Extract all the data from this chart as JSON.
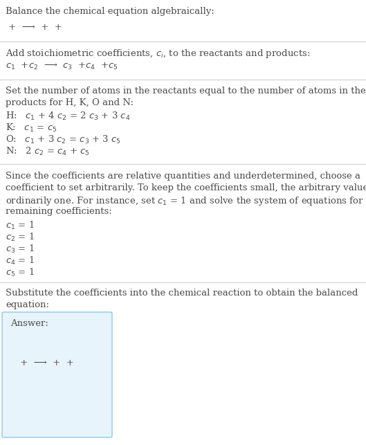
{
  "bg_color": "#ffffff",
  "text_color": "#4a4a4a",
  "line_color": "#cccccc",
  "title": "Balance the chemical equation algebraically:",
  "eq1": " +  ⟶  +  + ",
  "s2_intro": "Add stoichiometric coefficients, $c_i$, to the reactants and products:",
  "eq2_parts": [
    "$c_1$  +$c_2$",
    "  ⟶  $c_3$  +$c_4$  +$c_5$"
  ],
  "s3_line1": "Set the number of atoms in the reactants equal to the number of atoms in the",
  "s3_line2": "products for H, K, O and N:",
  "atom_H": "H:   $c_1$ + 4 $c_2$ = 2 $c_3$ + 3 $c_4$",
  "atom_K": "K:   $c_1$ = $c_5$",
  "atom_O": "O:   $c_1$ + 3 $c_2$ = $c_3$ + 3 $c_5$",
  "atom_N": "N:   2 $c_2$ = $c_4$ + $c_5$",
  "s4_line1": "Since the coefficients are relative quantities and underdetermined, choose a",
  "s4_line2": "coefficient to set arbitrarily. To keep the coefficients small, the arbitrary value is",
  "s4_line3": "ordinarily one. For instance, set $c_1$ = 1 and solve the system of equations for the",
  "s4_line4": "remaining coefficients:",
  "c1": "$c_1$ = 1",
  "c2": "$c_2$ = 1",
  "c3": "$c_3$ = 1",
  "c4": "$c_4$ = 1",
  "c5": "$c_5$ = 1",
  "s5_line1": "Substitute the coefficients into the chemical reaction to obtain the balanced",
  "s5_line2": "equation:",
  "answer_label": "Answer:",
  "answer_eq": " +  ⟶  +  + ",
  "answer_bg": "#e8f4fb",
  "answer_border": "#8dc8e8",
  "fs": 9.5
}
